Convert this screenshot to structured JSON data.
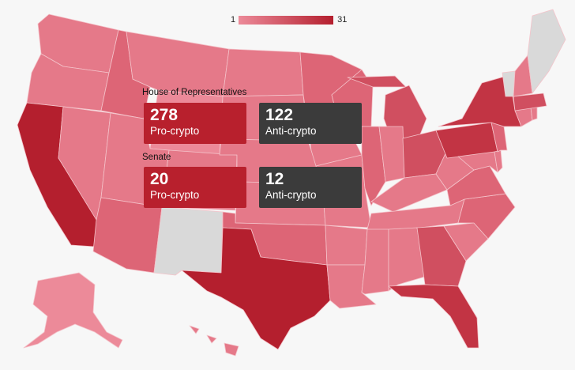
{
  "legend": {
    "min": "1",
    "max": "31",
    "color_min": "#ec8a99",
    "color_max": "#b41f2e"
  },
  "colors": {
    "no_data": "#d9d9d9",
    "pro_card": "#b8202d",
    "anti_card": "#3b3b3b",
    "state_shades": [
      "#ec8a99",
      "#e57989",
      "#dd6576",
      "#d04f60",
      "#c23444",
      "#b41f2e"
    ]
  },
  "house": {
    "label": "House of Representatives",
    "pro": {
      "count": "278",
      "label": "Pro-crypto"
    },
    "anti": {
      "count": "122",
      "label": "Anti-crypto"
    }
  },
  "senate": {
    "label": "Senate",
    "pro": {
      "count": "20",
      "label": "Pro-crypto"
    },
    "anti": {
      "count": "12",
      "label": "Anti-crypto"
    }
  }
}
